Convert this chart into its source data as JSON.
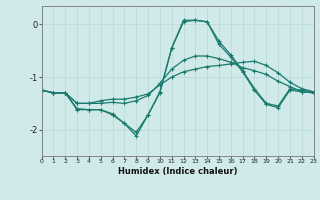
{
  "xlabel": "Humidex (Indice chaleur)",
  "background_color": "#d0eaea",
  "line_color": "#1a7a6e",
  "grid_color": "#b8d8d8",
  "xlim": [
    0,
    23
  ],
  "ylim": [
    -2.5,
    0.35
  ],
  "yticks": [
    0,
    -1,
    -2
  ],
  "xticks": [
    0,
    1,
    2,
    3,
    4,
    5,
    6,
    7,
    8,
    9,
    10,
    11,
    12,
    13,
    14,
    15,
    16,
    17,
    18,
    19,
    20,
    21,
    22,
    23
  ],
  "line1_x": [
    0,
    1,
    2,
    3,
    4,
    5,
    6,
    7,
    8,
    9,
    10,
    11,
    12,
    13,
    14,
    15,
    16,
    17,
    18,
    19,
    20,
    21,
    22,
    23
  ],
  "line1_y": [
    -1.25,
    -1.3,
    -1.3,
    -1.5,
    -1.5,
    -1.45,
    -1.42,
    -1.42,
    -1.38,
    -1.32,
    -1.15,
    -1.0,
    -0.9,
    -0.85,
    -0.8,
    -0.78,
    -0.75,
    -0.72,
    -0.7,
    -0.78,
    -0.92,
    -1.1,
    -1.22,
    -1.28
  ],
  "line2_x": [
    0,
    1,
    2,
    3,
    4,
    5,
    6,
    7,
    8,
    9,
    10,
    11,
    12,
    13,
    14,
    15,
    16,
    17,
    18,
    19,
    20,
    21,
    22,
    23
  ],
  "line2_y": [
    -1.25,
    -1.3,
    -1.3,
    -1.5,
    -1.5,
    -1.5,
    -1.48,
    -1.5,
    -1.45,
    -1.35,
    -1.12,
    -0.85,
    -0.68,
    -0.6,
    -0.6,
    -0.65,
    -0.72,
    -0.82,
    -0.88,
    -0.95,
    -1.08,
    -1.18,
    -1.28,
    -1.3
  ],
  "line3_x": [
    0,
    1,
    2,
    3,
    4,
    5,
    6,
    7,
    8,
    9,
    10,
    11,
    12,
    13,
    14,
    15,
    16,
    17,
    18,
    19,
    20,
    21,
    22,
    23
  ],
  "line3_y": [
    -1.25,
    -1.3,
    -1.3,
    -1.6,
    -1.62,
    -1.62,
    -1.7,
    -1.88,
    -2.05,
    -1.72,
    -1.28,
    -0.45,
    0.05,
    0.08,
    0.05,
    -0.32,
    -0.58,
    -0.88,
    -1.22,
    -1.5,
    -1.55,
    -1.22,
    -1.25,
    -1.28
  ],
  "line4_x": [
    0,
    1,
    2,
    3,
    4,
    5,
    6,
    7,
    8,
    9,
    10,
    11,
    12,
    13,
    14,
    15,
    16,
    17,
    18,
    19,
    20,
    21,
    22,
    23
  ],
  "line4_y": [
    -1.25,
    -1.3,
    -1.3,
    -1.62,
    -1.62,
    -1.62,
    -1.72,
    -1.88,
    -2.12,
    -1.72,
    -1.3,
    -0.45,
    0.08,
    0.08,
    0.05,
    -0.38,
    -0.62,
    -0.9,
    -1.25,
    -1.52,
    -1.58,
    -1.25,
    -1.28,
    -1.3
  ]
}
